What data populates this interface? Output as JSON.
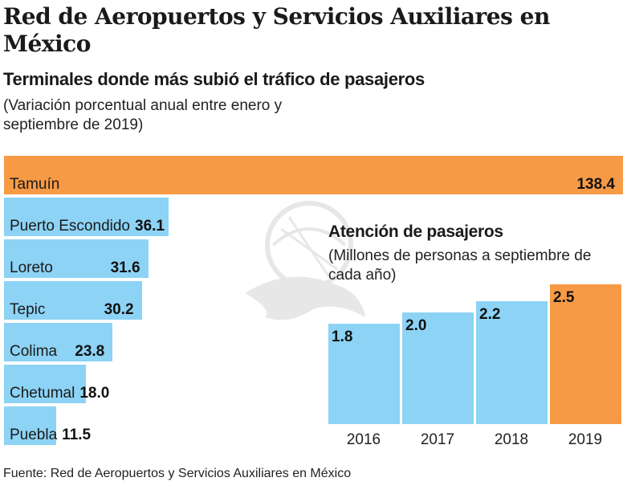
{
  "header": {
    "title": "Red de Aeropuertos y Servicios Auxiliares en México",
    "subtitle": "Terminales donde más subió el tráfico de pasajeros",
    "note": "(Variación porcentual anual entre enero y septiembre de 2019)"
  },
  "colors": {
    "highlight": "#F79A45",
    "bar": "#8DD3F5",
    "text": "#1a1a1a"
  },
  "source": "Fuente: Red de Aeropuertos y Servicios Auxiliares en México",
  "watermark_icon": "eagle-emblem-icon",
  "chart_data": [
    {
      "type": "bar",
      "orientation": "horizontal",
      "title": "Terminales donde más subió el tráfico de pasajeros",
      "subtitle": "(Variación porcentual anual entre enero y septiembre de 2019)",
      "categories": [
        "Tamuín",
        "Puerto Escondido",
        "Loreto",
        "Tepic",
        "Colima",
        "Chetumal",
        "Puebla"
      ],
      "values": [
        138.4,
        36.1,
        31.6,
        30.2,
        23.8,
        18.0,
        11.5
      ],
      "value_labels": [
        "138.4",
        "36.1",
        "31.6",
        "30.2",
        "23.8",
        "18.0",
        "11.5"
      ],
      "highlight": [
        true,
        false,
        false,
        false,
        false,
        false,
        false
      ],
      "xlabel": "",
      "ylabel": "",
      "xlim": [
        0,
        138.4
      ],
      "grid": false,
      "legend": "none"
    },
    {
      "type": "bar",
      "orientation": "vertical",
      "title": "Atención de pasajeros",
      "subtitle": "(Millones de personas a septiembre de cada año)",
      "categories": [
        "2016",
        "2017",
        "2018",
        "2019"
      ],
      "values": [
        1.8,
        2.0,
        2.2,
        2.5
      ],
      "value_labels": [
        "1.8",
        "2.0",
        "2.2",
        "2.5"
      ],
      "highlight": [
        false,
        false,
        false,
        true
      ],
      "xlabel": "",
      "ylabel": "",
      "ylim": [
        0,
        2.5
      ],
      "grid": false,
      "legend": "none"
    }
  ]
}
